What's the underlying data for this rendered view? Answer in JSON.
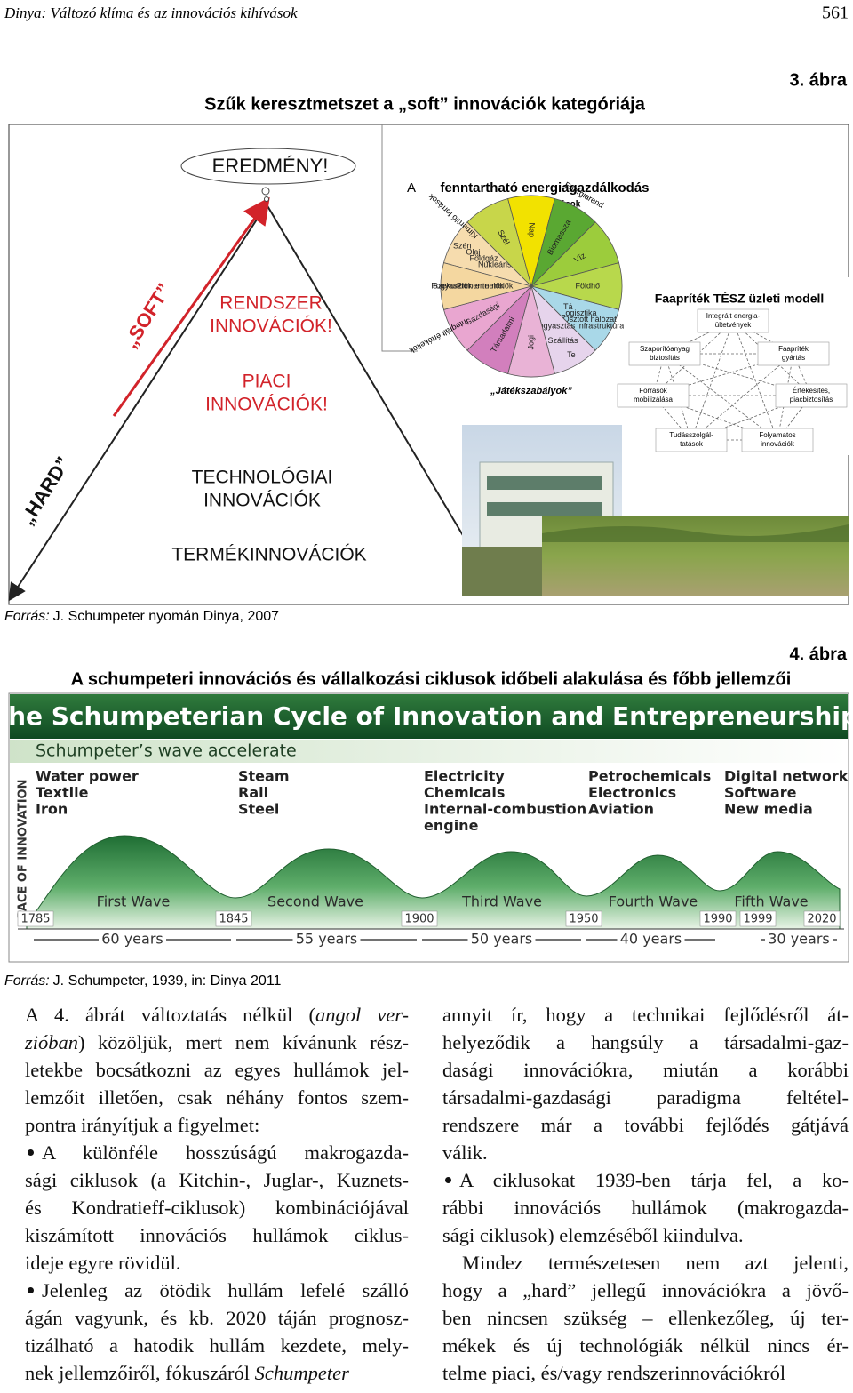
{
  "header": {
    "running_title": "Dinya: Változó klíma és az innovációs kihívások",
    "page_number": "561"
  },
  "figure3": {
    "label": "3. ábra",
    "title": "Szűk keresztmetszet a „soft” innovációk kategóriája",
    "pyramid": {
      "result": "EREDMÉNY!",
      "soft": "„SOFT”",
      "hard": "„HARD”",
      "levels": [
        {
          "lines": [
            "RENDSZER",
            "INNOVÁCIÓK!"
          ]
        },
        {
          "lines": [
            "PIACI",
            "INNOVÁCIÓK!"
          ]
        },
        {
          "lines": [
            "TECHNOLÓGIAI",
            "INNOVÁCIÓK"
          ]
        },
        {
          "lines": [
            "TERMÉKINNOVÁCIÓK"
          ]
        }
      ]
    },
    "wheel": {
      "prefix": "A",
      "title": "fenntartható energiagazdálkodás",
      "subtitle": "Megújuló források",
      "rules": "„Játékszabályok”",
      "outer": [
        "Kimerülő források",
        "Integrált értékeltek",
        "Energiarend"
      ],
      "wedges": [
        {
          "color": "#f6dcae",
          "labels": [
            "Szén",
            "Olaj",
            "Földgáz",
            "Nukleáris"
          ]
        },
        {
          "color": "#c8d64a",
          "labels": [
            "Szél"
          ]
        },
        {
          "color": "#f2e200",
          "labels": [
            "Nap"
          ]
        },
        {
          "color": "#5aa832",
          "labels": [
            "Biomassza"
          ]
        },
        {
          "color": "#9ccc3c",
          "labels": [
            "Víz"
          ]
        },
        {
          "color": "#b8d84c",
          "labels": [
            "Földhő"
          ]
        },
        {
          "color": "#a9d8e8",
          "labels": [
            "Infrastruktúra",
            "Osztott hálózat",
            "Logisztika",
            "Tá"
          ]
        },
        {
          "color": "#e6d4ec",
          "labels": [
            "Te",
            "Szállítás",
            "Fogyasztás"
          ]
        },
        {
          "color": "#e9b3d6",
          "labels": [
            "Jogi"
          ]
        },
        {
          "color": "#d27fbd",
          "labels": [
            "Társadalmi"
          ]
        },
        {
          "color": "#e9a6d0",
          "labels": [
            "Gazdasági"
          ]
        },
        {
          "color": "#f4d7a0",
          "labels": [
            "Fogyasztók",
            "Szekunder termelők",
            "Primer termelők"
          ]
        }
      ]
    },
    "model": {
      "title": "Faapríték TÉSZ üzleti modell",
      "nodes": [
        {
          "lines": [
            "Integrált energia-",
            "ültetvények"
          ]
        },
        {
          "lines": [
            "Szaporítóanyag",
            "biztosítás"
          ]
        },
        {
          "lines": [
            "Faapríték",
            "gyártás"
          ]
        },
        {
          "lines": [
            "Források",
            "mobilizálása"
          ]
        },
        {
          "lines": [
            "Értékesítés,",
            "piacbiztosítás"
          ]
        },
        {
          "lines": [
            "Tudásszolgál-",
            "tatások"
          ]
        },
        {
          "lines": [
            "Folyamatos",
            "innovációk"
          ]
        }
      ]
    },
    "source": {
      "label": "Forrás:",
      "text": "J. Schumpeter nyomán Dinya, 2007"
    }
  },
  "figure4": {
    "label": "4. ábra",
    "title": "A schumpeteri innovációs és vállalkozási ciklusok időbeli alakulása és főbb jellemzői",
    "image": {
      "title": "The Schumpeterian Cycle of Innovation and Entrepreneurship",
      "subtitle": "Schumpeter’s wave accelerate",
      "axis_label": "PACE OF INNOVATION",
      "eras": [
        [
          "Water power",
          "Textile",
          "Iron"
        ],
        [
          "Steam",
          "Rail",
          "Steel"
        ],
        [
          "Electricity",
          "Chemicals",
          "Internal-combustion",
          "engine"
        ],
        [
          "Petrochemicals",
          "Electronics",
          "Aviation"
        ],
        [
          "Digital network",
          "Software",
          "New media"
        ]
      ],
      "waves": [
        "First Wave",
        "Second Wave",
        "Third Wave",
        "Fourth Wave",
        "Fifth Wave"
      ],
      "years": [
        "1785",
        "1845",
        "1900",
        "1950",
        "1990",
        "1999",
        "2020"
      ],
      "periods": [
        "60 years",
        "55 years",
        "50 years",
        "40 years",
        "30 years"
      ]
    },
    "source": {
      "label": "Forrás:",
      "text": "J. Schumpeter, 1939, in: Dinya 2011"
    }
  },
  "body": {
    "columns": [
      {
        "paragraphs": [
          {
            "lines": [
              [
                "A 4. ábrát változtatás nélkül (",
                {
                  "italic": "angol ver-"
                }
              ],
              [
                {
                  "italic": "zióban"
                },
                ") közöljük, mert nem kívánunk rész-"
              ],
              "letekbe bocsátkozni az egyes hullámok jel-",
              "lemzőit illetően, csak néhány fontos szem-",
              "pontra irányítjuk a figyelmet:"
            ]
          },
          {
            "bullet": true,
            "lines": [
              "A különféle hosszúságú makrogazda-",
              "sági ciklusok (a Kitchin-, Juglar-, Kuznets-",
              "és Kondratieff-ciklusok) kombinációjával",
              "kiszámított innovációs hullámok ciklus-",
              "ideje egyre rövidül."
            ]
          },
          {
            "bullet": true,
            "lines": [
              "Jelenleg az ötödik hullám lefelé szálló",
              "ágán vagyunk, és kb. 2020 táján prognosz-",
              "tizálható a hatodik hullám kezdete, mely-",
              [
                "nek jellemzőiről, fókuszáról ",
                {
                  "italic": "Schumpeter"
                }
              ]
            ]
          }
        ]
      },
      {
        "paragraphs": [
          {
            "lines": [
              "annyit ír, hogy a technikai fejlődésről át-",
              "helyeződik a hangsúly a társadalmi-gaz-",
              "dasági innovációkra, miután a korábbi",
              "társadalmi-gazdasági paradigma feltétel-",
              "rendszere már a további fejlődés gátjává",
              "válik."
            ]
          },
          {
            "bullet": true,
            "lines": [
              "A ciklusokat 1939-ben tárja fel, a ko-",
              "rábbi innovációs hullámok (makrogazda-",
              "sági ciklusok) elemzéséből kiindulva."
            ]
          },
          {
            "indent": true,
            "lines": [
              "Mindez természetesen nem azt jelenti,",
              "hogy a „hard” jellegű innovációkra a jövő-",
              "ben nincsen szükség – ellenkezőleg, új ter-",
              "mékek és új technológiák nélkül nincs ér-",
              "telme piaci, és/vagy rendszerinnovációkról"
            ]
          }
        ]
      }
    ]
  }
}
